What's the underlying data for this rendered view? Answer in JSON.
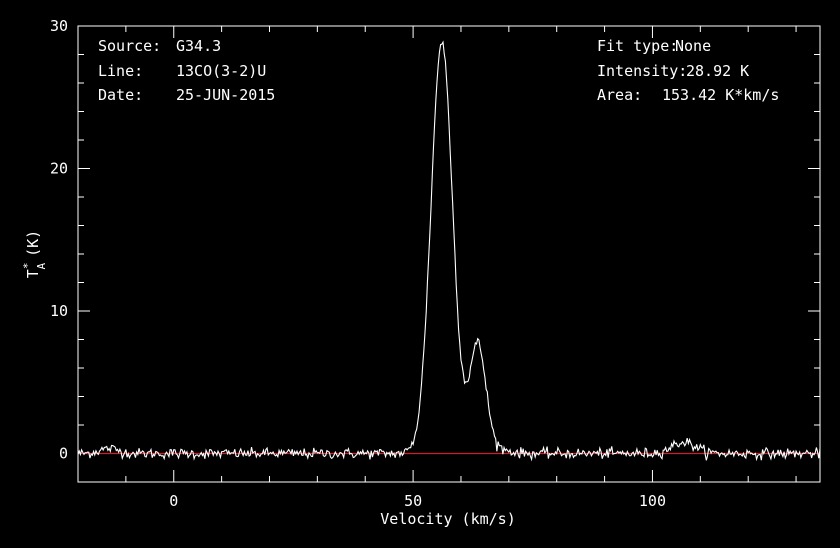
{
  "header": {
    "source_label": "Source:",
    "source_value": "G34.3",
    "line_label": "Line:",
    "line_value": "13CO(3-2)U",
    "date_label": "Date:",
    "date_value": "25-JUN-2015",
    "fit_label": "Fit type:",
    "fit_value": "None",
    "intensity_label": "Intensity:",
    "intensity_value": "28.92 K",
    "area_label": "Area:",
    "area_value": "153.42 K*km/s"
  },
  "colors": {
    "background": "#000000",
    "axes": "#ffffff",
    "spectrum": "#ffffff",
    "baseline": "#cc1f2a"
  },
  "chart_data": {
    "type": "line",
    "title": "",
    "xlabel": "Velocity (km/s)",
    "ylabel_main": "T",
    "ylabel_sup": "*",
    "ylabel_sub": "A",
    "ylabel_unit": "(K)",
    "xlim": [
      -20,
      135
    ],
    "ylim": [
      -2,
      30
    ],
    "xticks": [
      {
        "value": 0,
        "label": "0"
      },
      {
        "value": 50,
        "label": "50"
      },
      {
        "value": 100,
        "label": "100"
      }
    ],
    "yticks": [
      {
        "value": 0,
        "label": "0"
      },
      {
        "value": 10,
        "label": "10"
      },
      {
        "value": 20,
        "label": "20"
      },
      {
        "value": 30,
        "label": "30"
      }
    ],
    "baseline": 0,
    "series": [
      {
        "components": [
          {
            "center": 56.0,
            "amplitude": 28.9,
            "sigma": 2.25
          },
          {
            "center": 63.5,
            "amplitude": 7.6,
            "sigma": 1.7
          },
          {
            "center": 106.5,
            "amplitude": 0.8,
            "sigma": 2.5
          },
          {
            "center": -13.5,
            "amplitude": 0.35,
            "sigma": 2.0
          },
          {
            "center": 67.5,
            "amplitude": 0.3,
            "sigma": 2.5
          }
        ],
        "noise_rms": 0.18,
        "channel_width": 0.25
      }
    ]
  }
}
